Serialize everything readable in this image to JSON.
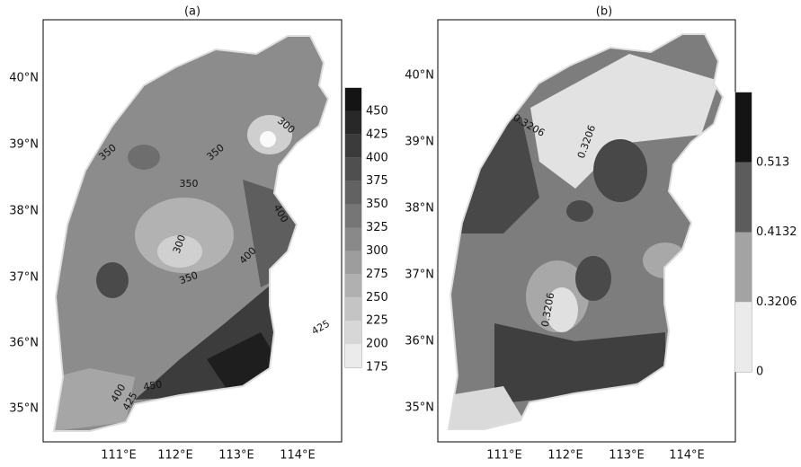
{
  "panels": [
    {
      "title": "(a)",
      "x_ticks": [
        "111°E",
        "112°E",
        "113°E",
        "114°E"
      ],
      "y_ticks": [
        "40°N",
        "39°N",
        "38°N",
        "37°N",
        "36°N",
        "35°N"
      ],
      "colorbar": [
        175,
        200,
        225,
        250,
        275,
        300,
        325,
        350,
        375,
        400,
        425,
        450
      ],
      "contour_labels": [
        "350",
        "350",
        "350",
        "300",
        "300",
        "400",
        "400",
        "350",
        "425",
        "400",
        "425",
        "450"
      ]
    },
    {
      "title": "(b)",
      "x_ticks": [
        "111°E",
        "112°E",
        "113°E",
        "114°E"
      ],
      "y_ticks": [
        "40°N",
        "39°N",
        "38°N",
        "37°N",
        "36°N",
        "35°N"
      ],
      "colorbar": [
        0,
        0.3206,
        0.4132,
        0.513
      ],
      "contour_labels": [
        "0.3206",
        "0.3206",
        "0.3206"
      ]
    }
  ]
}
